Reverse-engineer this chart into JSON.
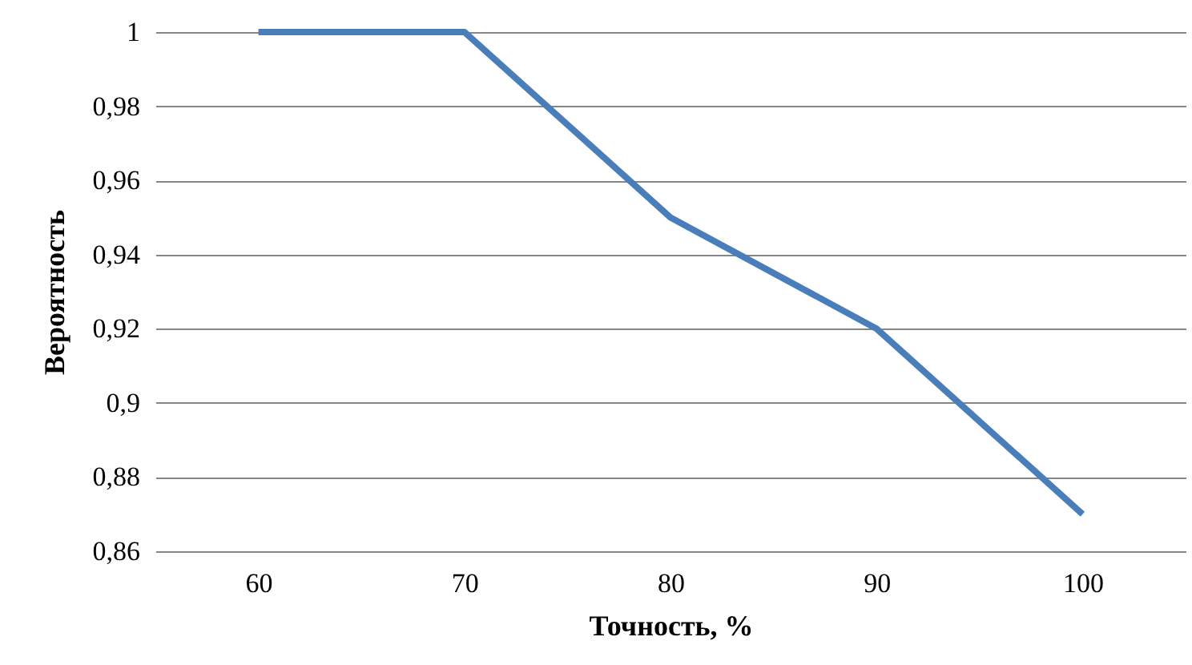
{
  "chart_data": {
    "type": "line",
    "xlabel": "Точность, %",
    "ylabel": "Вероятность",
    "categories": [
      "60",
      "70",
      "80",
      "90",
      "100"
    ],
    "series": [
      {
        "color": "#4a7ebb",
        "values": [
          1,
          1,
          0.95,
          0.92,
          0.87
        ]
      }
    ],
    "ylim": [
      0.86,
      1
    ],
    "yticks": [
      {
        "value": 0.86,
        "label": "0,86"
      },
      {
        "value": 0.88,
        "label": "0,88"
      },
      {
        "value": 0.9,
        "label": "0,9"
      },
      {
        "value": 0.92,
        "label": "0,92"
      },
      {
        "value": 0.94,
        "label": "0,94"
      },
      {
        "value": 0.96,
        "label": "0,96"
      },
      {
        "value": 0.98,
        "label": "0,98"
      },
      1
    ],
    "grid": "y",
    "marker": "none",
    "line_style": "solid"
  }
}
